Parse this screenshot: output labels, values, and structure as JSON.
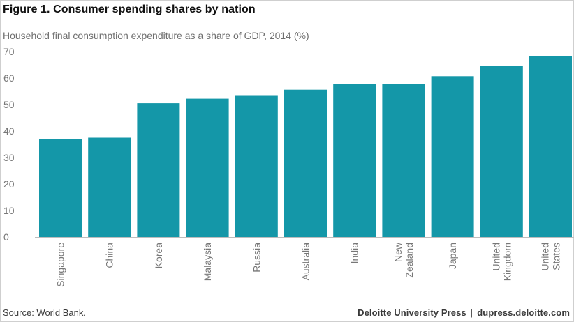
{
  "figure": {
    "title": "Figure 1. Consumer spending shares by nation",
    "subtitle": "Household final consumption expenditure as a share of GDP, 2014 (%)",
    "source": "Source: World Bank.",
    "credit_left": "Deloitte University Press",
    "credit_separator": "|",
    "credit_right": "dupress.deloitte.com"
  },
  "colors": {
    "bar": "#1497a8",
    "axis": "#bdbdbd",
    "tick_text": "#777777"
  },
  "chart_data": {
    "type": "bar",
    "title": "Figure 1. Consumer spending shares by nation",
    "subtitle": "Household final consumption expenditure as a share of GDP, 2014 (%)",
    "xlabel": "",
    "ylabel": "",
    "ylim": [
      0,
      70
    ],
    "yticks": [
      0,
      10,
      20,
      30,
      40,
      50,
      60,
      70
    ],
    "grid": false,
    "legend": "none",
    "categories": [
      [
        "Singapore"
      ],
      [
        "China"
      ],
      [
        "Korea"
      ],
      [
        "Malaysia"
      ],
      [
        "Russia"
      ],
      [
        "Australia"
      ],
      [
        "India"
      ],
      [
        "New",
        "Zealand"
      ],
      [
        "Japan"
      ],
      [
        "United",
        "Kingdom"
      ],
      [
        "United",
        "States"
      ]
    ],
    "values": [
      37.0,
      37.5,
      50.5,
      52.2,
      53.3,
      55.6,
      57.9,
      57.9,
      60.7,
      64.7,
      68.2
    ]
  }
}
